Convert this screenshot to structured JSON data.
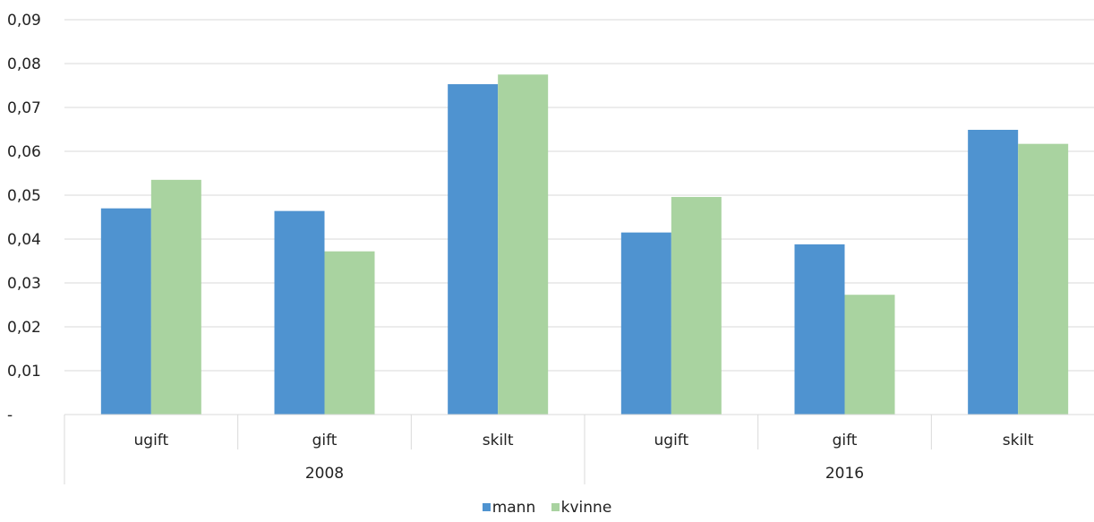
{
  "chart_data": {
    "type": "bar",
    "y_ticks": [
      "-",
      "0,01",
      "0,02",
      "0,03",
      "0,04",
      "0,05",
      "0,06",
      "0,07",
      "0,08",
      "0,09"
    ],
    "ylim": [
      0,
      0.09
    ],
    "grid": true,
    "groups": [
      {
        "label": "2008",
        "categories": [
          "ugift",
          "gift",
          "skilt"
        ]
      },
      {
        "label": "2016",
        "categories": [
          "ugift",
          "gift",
          "skilt"
        ]
      }
    ],
    "series": [
      {
        "name": "mann",
        "color": "#4f93d0",
        "values": [
          0.047,
          0.0464,
          0.0753,
          0.0415,
          0.0388,
          0.0649
        ]
      },
      {
        "name": "kvinne",
        "color": "#a9d3a0",
        "values": [
          0.0535,
          0.0372,
          0.0775,
          0.0496,
          0.0273,
          0.0617
        ]
      }
    ],
    "legend_position": "bottom"
  }
}
